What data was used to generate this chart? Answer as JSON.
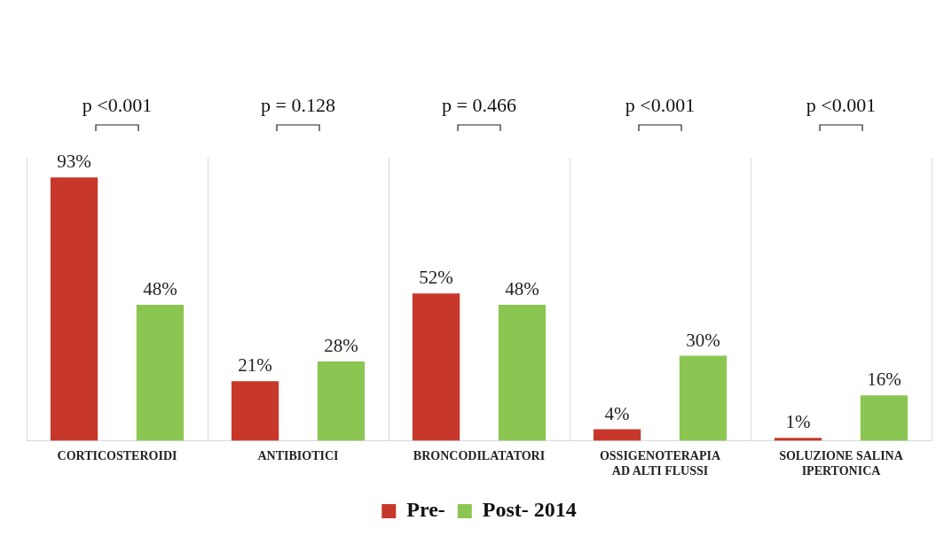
{
  "chart_data": {
    "type": "bar",
    "categories": [
      "CORTICOSTEROIDI",
      "ANTIBIOTICI",
      "BRONCODILATATORI",
      "OSSIGENOTERAPIA AD ALTI FLUSSI",
      "SOLUZIONE SALINA IPERTONICA"
    ],
    "series": [
      {
        "name": "Pre-",
        "color": "#c8382a",
        "values": [
          93,
          21,
          52,
          4,
          1
        ],
        "value_labels": [
          "93%",
          "21%",
          "52%",
          "4%",
          "1%"
        ]
      },
      {
        "name": "Post- 2014",
        "color": "#8cc652",
        "values": [
          48,
          28,
          48,
          30,
          16
        ],
        "value_labels": [
          "48%",
          "28%",
          "48%",
          "30%",
          "16%"
        ]
      }
    ],
    "annotations": [
      "p <0.001",
      "p = 0.128",
      "p = 0.466",
      "p <0.001",
      "p <0.001"
    ],
    "grid": "x",
    "legend": "bottom"
  }
}
